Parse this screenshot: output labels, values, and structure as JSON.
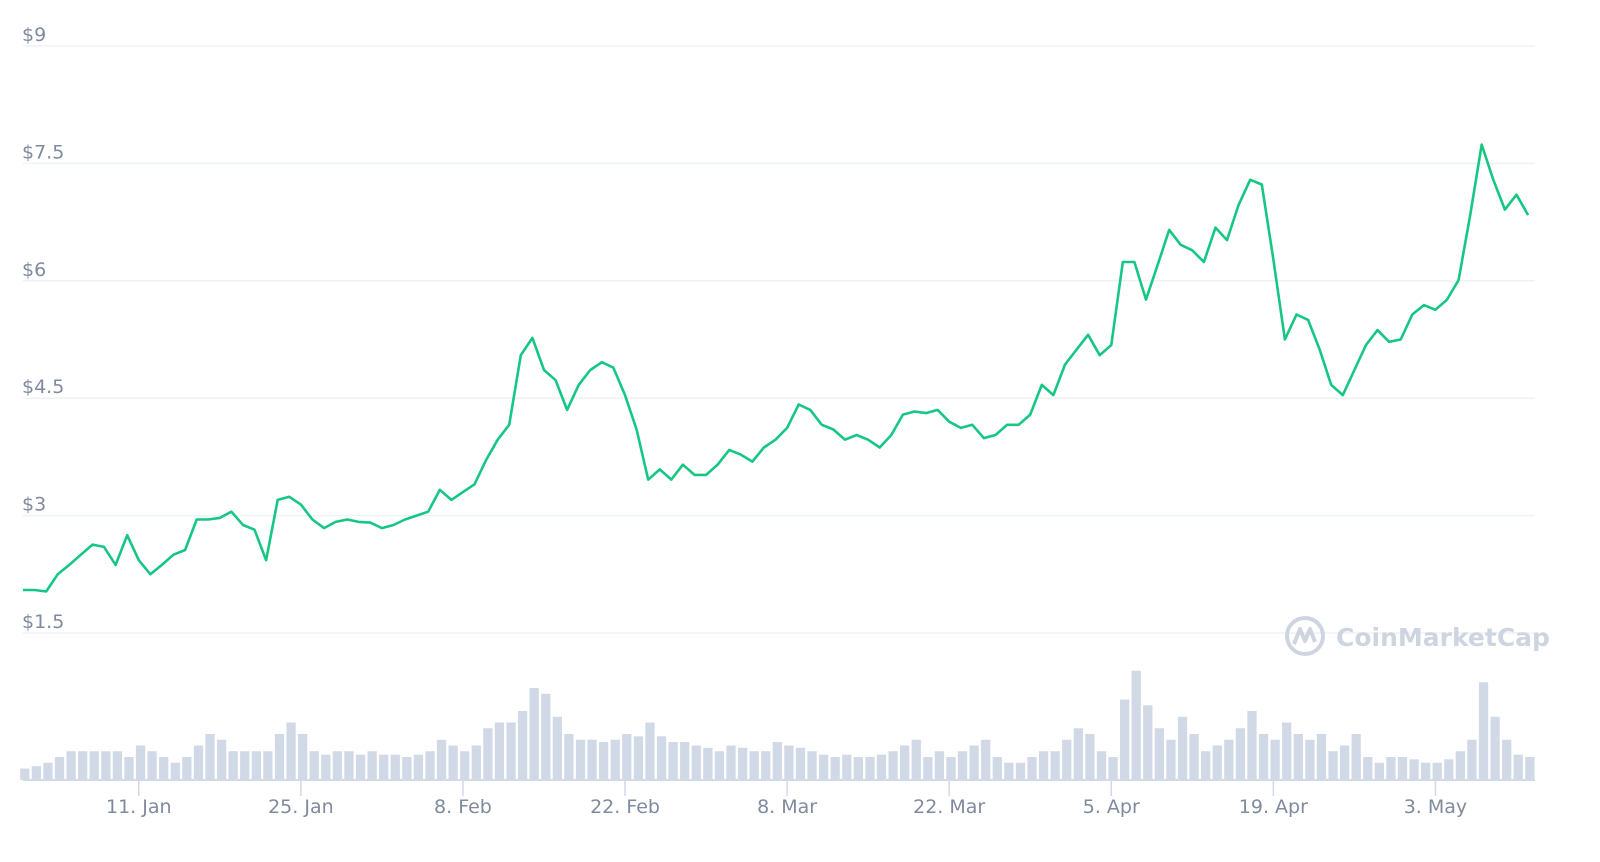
{
  "chart_data": {
    "type": "line",
    "title": "",
    "xlabel": "",
    "ylabel": "",
    "grid": true,
    "y_ticks": [
      "$9",
      "$7.5",
      "$6",
      "$4.5",
      "$3",
      "$1.5"
    ],
    "y_tick_values": [
      9,
      7.5,
      6,
      4.5,
      3,
      1.5
    ],
    "ylim": [
      1.5,
      9
    ],
    "x_ticks": [
      "11. Jan",
      "25. Jan",
      "8. Feb",
      "22. Feb",
      "8. Mar",
      "22. Mar",
      "5. Apr",
      "19. Apr",
      "3. May"
    ],
    "x_tick_days": [
      10,
      24,
      38,
      52,
      66,
      80,
      94,
      108,
      122
    ],
    "x_range_days": [
      0,
      130.6
    ],
    "line_color": "#16c784",
    "volume_color": "#d1d8e6",
    "price": [
      2.05,
      2.05,
      2.03,
      2.25,
      2.37,
      2.5,
      2.63,
      2.6,
      2.37,
      2.75,
      2.43,
      2.25,
      2.37,
      2.5,
      2.56,
      2.95,
      2.95,
      2.97,
      3.05,
      2.88,
      2.82,
      2.43,
      3.2,
      3.24,
      3.14,
      2.95,
      2.84,
      2.92,
      2.95,
      2.92,
      2.91,
      2.84,
      2.88,
      2.95,
      3.0,
      3.05,
      3.33,
      3.2,
      3.3,
      3.4,
      3.71,
      3.97,
      4.16,
      5.05,
      5.27,
      4.86,
      4.73,
      4.35,
      4.67,
      4.86,
      4.96,
      4.89,
      4.54,
      4.1,
      3.46,
      3.59,
      3.46,
      3.65,
      3.52,
      3.52,
      3.65,
      3.84,
      3.78,
      3.69,
      3.87,
      3.97,
      4.12,
      4.42,
      4.35,
      4.16,
      4.1,
      3.97,
      4.03,
      3.97,
      3.87,
      4.03,
      4.29,
      4.33,
      4.31,
      4.35,
      4.2,
      4.12,
      4.16,
      3.99,
      4.03,
      4.16,
      4.16,
      4.29,
      4.67,
      4.54,
      4.93,
      5.12,
      5.31,
      5.05,
      5.18,
      6.24,
      6.24,
      5.76,
      6.2,
      6.65,
      6.46,
      6.39,
      6.24,
      6.68,
      6.52,
      6.97,
      7.29,
      7.23,
      6.27,
      5.25,
      5.57,
      5.5,
      5.12,
      4.67,
      4.54,
      4.86,
      5.18,
      5.37,
      5.22,
      5.25,
      5.57,
      5.69,
      5.63,
      5.76,
      6.01,
      6.84,
      7.74,
      7.29,
      6.91,
      7.1,
      6.84
    ],
    "volume_relative": [
      10,
      12,
      15,
      20,
      25,
      25,
      25,
      25,
      25,
      20,
      30,
      25,
      20,
      15,
      20,
      30,
      40,
      35,
      25,
      25,
      25,
      25,
      40,
      50,
      40,
      25,
      22,
      25,
      25,
      22,
      25,
      22,
      22,
      20,
      22,
      25,
      35,
      30,
      25,
      30,
      45,
      50,
      50,
      60,
      80,
      75,
      55,
      40,
      35,
      35,
      33,
      35,
      40,
      38,
      50,
      38,
      33,
      33,
      30,
      28,
      25,
      30,
      28,
      25,
      25,
      33,
      30,
      28,
      25,
      22,
      20,
      22,
      20,
      20,
      22,
      25,
      30,
      35,
      20,
      25,
      20,
      25,
      30,
      35,
      20,
      15,
      15,
      20,
      25,
      25,
      35,
      45,
      40,
      25,
      20,
      70,
      95,
      65,
      45,
      35,
      55,
      40,
      25,
      30,
      35,
      45,
      60,
      40,
      35,
      50,
      40,
      35,
      40,
      25,
      30,
      40,
      20,
      15,
      20,
      20,
      18,
      15,
      15,
      18,
      25,
      35,
      85,
      55,
      35,
      22,
      20
    ],
    "watermark": "CoinMarketCap"
  }
}
